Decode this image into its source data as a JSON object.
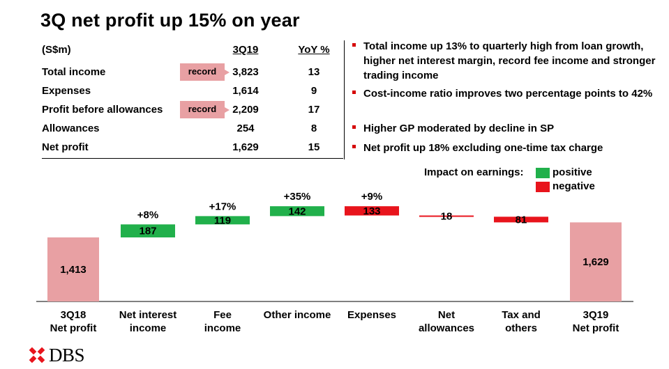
{
  "title": "3Q net profit up 15% on year",
  "table": {
    "header": {
      "label": "(S$m)",
      "col1": "3Q19",
      "col2": "YoY %"
    },
    "rows": [
      {
        "label": "Total income",
        "value": "3,823",
        "yoy": "13",
        "badge": "record"
      },
      {
        "label": "Expenses",
        "value": "1,614",
        "yoy": "9",
        "badge": ""
      },
      {
        "label": "Profit before allowances",
        "value": "2,209",
        "yoy": "17",
        "badge": "record"
      },
      {
        "label": "Allowances",
        "value": "254",
        "yoy": "8",
        "badge": ""
      },
      {
        "label": "Net profit",
        "value": "1,629",
        "yoy": "15",
        "badge": ""
      }
    ]
  },
  "bullets": [
    "Total income up 13% to quarterly high from loan growth, higher net interest margin, record fee income and stronger trading income",
    "Cost-income ratio improves two percentage points to 42%",
    "Higher GP moderated by decline in SP",
    "Net profit up 18% excluding one-time tax charge"
  ],
  "legend": {
    "title": "Impact on earnings:",
    "positive_label": "positive",
    "negative_label": "negative",
    "positive_color": "#21b04b",
    "negative_color": "#e8141c",
    "total_color": "#e8a0a3"
  },
  "chart_data": {
    "type": "waterfall",
    "categories": [
      "3Q18\nNet profit",
      "Net interest\nincome",
      "Fee\nincome",
      "Other income",
      "Expenses",
      "Net\nallowances",
      "Tax and\nothers",
      "3Q19\nNet profit"
    ],
    "steps": [
      {
        "category": "3Q18 Net profit",
        "value": 1413,
        "kind": "total",
        "label": "1,413",
        "pct": ""
      },
      {
        "category": "Net interest income",
        "value": 187,
        "kind": "positive",
        "label": "187",
        "pct": "+8%"
      },
      {
        "category": "Fee income",
        "value": 119,
        "kind": "positive",
        "label": "119",
        "pct": "+17%"
      },
      {
        "category": "Other income",
        "value": 142,
        "kind": "positive",
        "label": "142",
        "pct": "+35%"
      },
      {
        "category": "Expenses",
        "value": -133,
        "kind": "negative",
        "label": "133",
        "pct": "+9%"
      },
      {
        "category": "Net allowances",
        "value": -18,
        "kind": "negative",
        "label": "18",
        "pct": ""
      },
      {
        "category": "Tax and others",
        "value": -81,
        "kind": "negative",
        "label": "81",
        "pct": ""
      },
      {
        "category": "3Q19 Net profit",
        "value": 1629,
        "kind": "total",
        "label": "1,629",
        "pct": ""
      }
    ]
  },
  "logo": {
    "text": "DBS"
  }
}
